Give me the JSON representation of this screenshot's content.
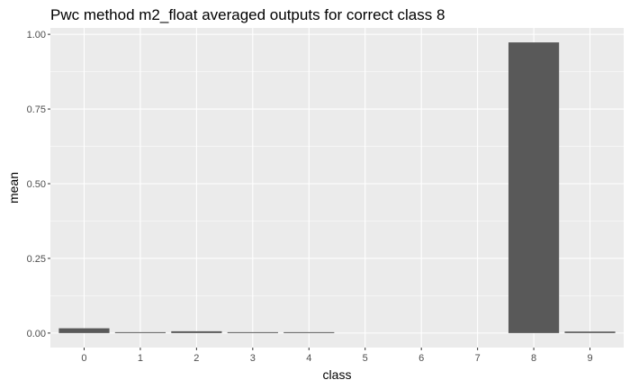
{
  "chart_data": {
    "type": "bar",
    "title": "Pwc method m2_float averaged outputs for correct class 8",
    "xlabel": "class",
    "ylabel": "mean",
    "categories": [
      "0",
      "1",
      "2",
      "3",
      "4",
      "5",
      "6",
      "7",
      "8",
      "9"
    ],
    "values": [
      0.016,
      0.003,
      0.006,
      0.003,
      0.003,
      0.0,
      0.0,
      0.0,
      0.973,
      0.005
    ],
    "ylim": [
      -0.0486,
      1.0215
    ],
    "yticks": [
      0.0,
      0.25,
      0.5,
      0.75,
      1.0
    ],
    "ytick_labels": [
      "0.00",
      "0.25",
      "0.50",
      "0.75",
      "1.00"
    ],
    "grid": true,
    "colors": {
      "panel": "#ebebeb",
      "grid_major": "#ffffff",
      "bar": "#595959",
      "tick_label": "#4d4d4d",
      "tick_mark": "#333333"
    }
  }
}
